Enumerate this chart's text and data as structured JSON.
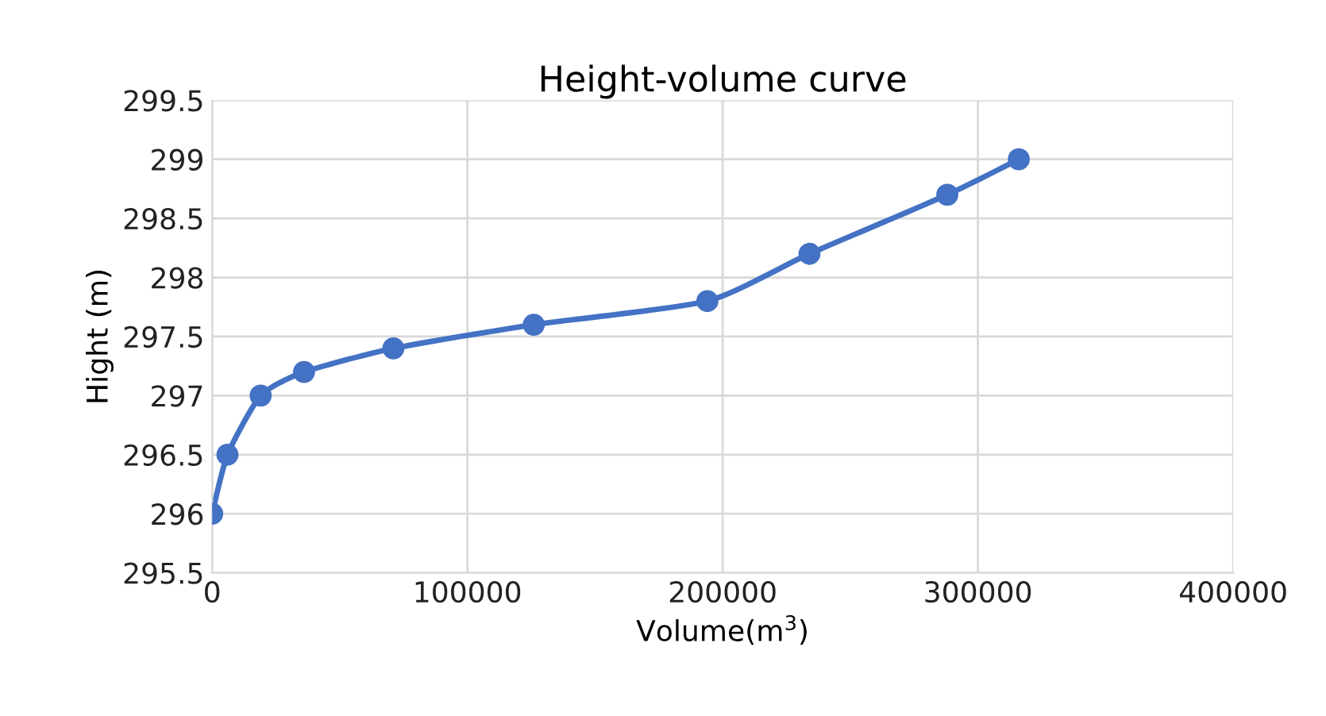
{
  "chart_data": {
    "type": "line",
    "title": "Height-volume curve",
    "xlabel": "Volume(m$^{3}$)",
    "ylabel": "Hight (m)",
    "x": [
      0,
      6000,
      19000,
      36000,
      71000,
      126000,
      194000,
      234000,
      288000,
      316000
    ],
    "series": [
      {
        "color": "#4472c4",
        "values": [
          296,
          296.5,
          297,
          297.2,
          297.4,
          297.6,
          297.8,
          298.2,
          298.7,
          299
        ]
      }
    ],
    "xlim": [
      0,
      400000
    ],
    "xticks": [
      0,
      100000,
      200000,
      300000,
      400000
    ],
    "ylim": [
      295.5,
      299.5
    ],
    "yticks": [
      295.5,
      296,
      296.5,
      297,
      297.5,
      298,
      298.5,
      299,
      299.5
    ],
    "grid": true,
    "marker": "circle",
    "line_style": "solid"
  }
}
